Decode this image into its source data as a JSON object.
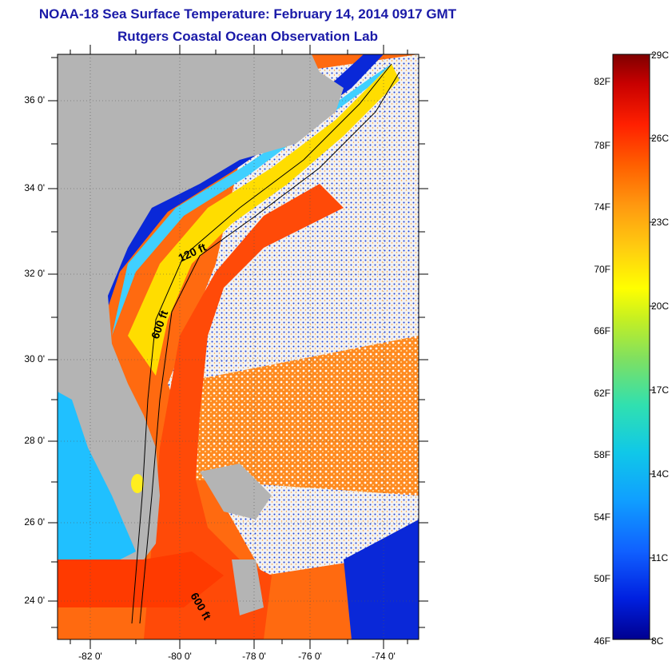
{
  "title": "NOAA-18 Sea Surface Temperature:  February 14, 2014 0917 GMT",
  "subtitle": "Rutgers Coastal Ocean Observation Lab",
  "map": {
    "lat_range": [
      23,
      37.2
    ],
    "lon_range": [
      -83,
      -73.2
    ],
    "lat_ticks": [
      "36 0'",
      "34 0'",
      "32 0'",
      "30 0'",
      "28 0'",
      "26 0'",
      "24 0'"
    ],
    "lon_ticks": [
      "-82 0'",
      "-80 0'",
      "-78 0'",
      "-76 0'",
      "-74 0'"
    ],
    "contour_labels": [
      "120 ft",
      "600 ft",
      "600 ft"
    ],
    "land_color": "#b4b4b4"
  },
  "colorbar": {
    "fahrenheit": [
      "82F",
      "78F",
      "74F",
      "70F",
      "66F",
      "62F",
      "58F",
      "54F",
      "50F",
      "46F"
    ],
    "celsius": [
      "29C",
      "26C",
      "23C",
      "20C",
      "17C",
      "14C",
      "11C",
      "8C"
    ],
    "colors": [
      "#7f0000",
      "#c80000",
      "#ff2000",
      "#ff6000",
      "#ff9a10",
      "#ffcc10",
      "#ffff00",
      "#c8f020",
      "#80e060",
      "#30e0b0",
      "#10c8e8",
      "#10a0ff",
      "#1060ff",
      "#0020e0",
      "#000090"
    ]
  }
}
